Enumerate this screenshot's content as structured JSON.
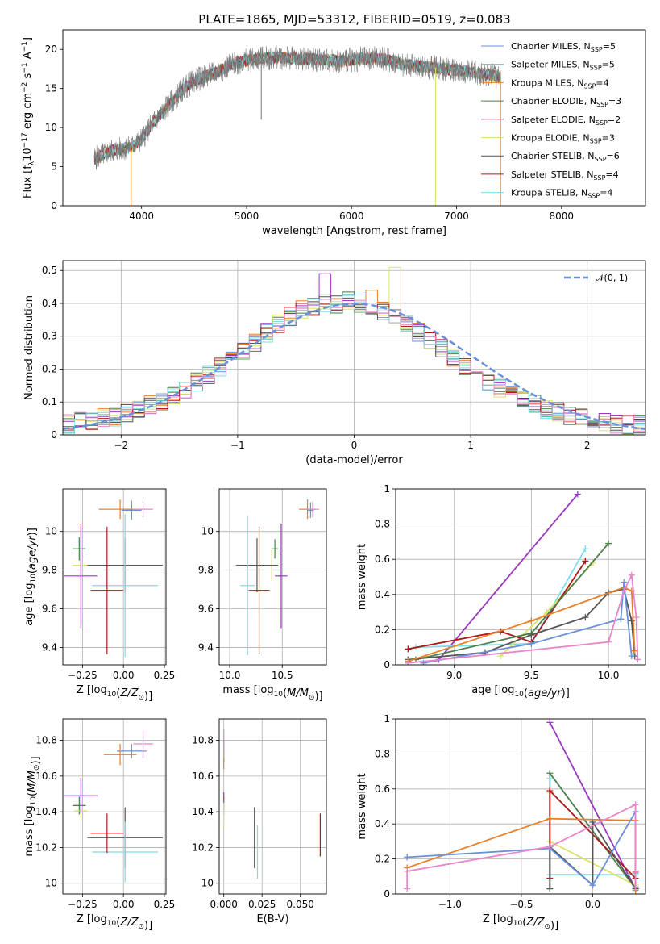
{
  "figure": {
    "title": "PLATE=1865, MJD=53312, FIBERID=0519, z=0.083"
  },
  "chart_data": [
    {
      "id": "spectrum",
      "type": "line",
      "xlabel": "wavelength [Angstrom, rest frame]",
      "ylabel_parts": {
        "pre": "Flux [f",
        "sub": "λ",
        "mid": "10",
        "sup": "−17",
        "post": " erg cm",
        "sup2": "−2",
        "post2": " s",
        "sup3": "−1",
        "post3": " A",
        "sup4": "−1",
        "end": "]"
      },
      "xlim": [
        3250,
        8800
      ],
      "ylim": [
        0,
        22.5
      ],
      "xticks": [
        4000,
        5000,
        6000,
        7000,
        8000
      ],
      "yticks": [
        0,
        5,
        10,
        15,
        20
      ],
      "grid": false,
      "legend_position": "right",
      "series": [
        {
          "name": "Chabrier MILES, N",
          "sub": "SSP",
          "suffix": "=5",
          "color": "#6a8fdb"
        },
        {
          "name": "Salpeter MILES, N",
          "sub": "SSP",
          "suffix": "=5",
          "color": "#4dbdb0"
        },
        {
          "name": "Kroupa MILES, N",
          "sub": "SSP",
          "suffix": "=4",
          "color": "#e8802a"
        },
        {
          "name": "Chabrier ELODIE, N",
          "sub": "SSP",
          "suffix": "=3",
          "color": "#4b7f4b"
        },
        {
          "name": "Salpeter ELODIE, N",
          "sub": "SSP",
          "suffix": "=2",
          "color": "#9a38c0"
        },
        {
          "name": "Kroupa ELODIE, N",
          "sub": "SSP",
          "suffix": "=3",
          "color": "#d9e36a"
        },
        {
          "name": "Chabrier STELIB, N",
          "sub": "SSP",
          "suffix": "=6",
          "color": "#555555"
        },
        {
          "name": "Salpeter STELIB, N",
          "sub": "SSP",
          "suffix": "=4",
          "color": "#b01818"
        },
        {
          "name": "Kroupa STELIB, N",
          "sub": "SSP",
          "suffix": "=4",
          "color": "#7fdde6"
        }
      ],
      "continuum": {
        "x": [
          3550,
          3700,
          3900,
          4000,
          4100,
          4200,
          4300,
          4400,
          4500,
          4700,
          4900,
          5100,
          5300,
          5500,
          5700,
          5900,
          6100,
          6300,
          6500,
          6700,
          6900,
          7100,
          7300,
          7400
        ],
        "y": [
          6.0,
          7.0,
          7.5,
          8.5,
          10.5,
          12.0,
          13.5,
          15.0,
          16.0,
          17.0,
          18.3,
          18.8,
          19.0,
          18.8,
          18.7,
          18.5,
          18.8,
          18.8,
          18.0,
          17.8,
          17.5,
          17.2,
          16.8,
          16.5
        ]
      },
      "data_x_range": [
        3550,
        7420
      ]
    },
    {
      "id": "residuals",
      "type": "step",
      "xlabel": "(data-model)/error",
      "ylabel": "Normed distribution",
      "xlim": [
        -2.5,
        2.5
      ],
      "ylim": [
        0,
        0.53
      ],
      "xticks": [
        -2,
        -1,
        0,
        1,
        2
      ],
      "xtick_labels": [
        "−2",
        "−1",
        "0",
        "1",
        "2"
      ],
      "yticks": [
        0.0,
        0.1,
        0.2,
        0.3,
        0.4,
        0.5
      ],
      "grid": true,
      "legend_position": "top-right",
      "gaussian": {
        "label": "𝒩(0, 1)",
        "color": "#6a8fdb"
      },
      "bin_edges_start": -2.6,
      "bin_width": 0.1,
      "base_hist": [
        0.03,
        0.035,
        0.04,
        0.045,
        0.05,
        0.055,
        0.065,
        0.075,
        0.09,
        0.105,
        0.12,
        0.14,
        0.16,
        0.18,
        0.205,
        0.23,
        0.255,
        0.28,
        0.31,
        0.34,
        0.36,
        0.38,
        0.39,
        0.4,
        0.4,
        0.41,
        0.4,
        0.39,
        0.38,
        0.36,
        0.34,
        0.31,
        0.285,
        0.26,
        0.235,
        0.21,
        0.185,
        0.165,
        0.145,
        0.125,
        0.11,
        0.095,
        0.08,
        0.07,
        0.06,
        0.05,
        0.045,
        0.04,
        0.035,
        0.03,
        0.03,
        0.03,
        0.03
      ],
      "peaks": {
        "orange_max": 0.44,
        "yellow_max": 0.51,
        "purple_max": 0.49
      }
    },
    {
      "id": "age-vs-Z",
      "type": "errorbar",
      "xlabel_parts": {
        "pre": "Z [log",
        "sub": "10",
        "mid": "(",
        "it": "Z/Z",
        "sun": "⊙",
        "end": ")]"
      },
      "ylabel_parts": {
        "pre": "age  [log",
        "sub": "10",
        "mid": "(",
        "it": "age/yr",
        "end": ")]"
      },
      "xlim": [
        -0.37,
        0.26
      ],
      "ylim": [
        9.31,
        10.22
      ],
      "xticks": [
        -0.25,
        0.0,
        0.25
      ],
      "xtick_labels": [
        "−0.25",
        "0.00",
        "0.25"
      ],
      "yticks": [
        9.4,
        9.6,
        9.8,
        10.0
      ],
      "grid": true,
      "points": [
        {
          "x": 0.05,
          "xerr": 0.06,
          "y": 10.11,
          "yerr": 0.05,
          "color": "#6a8fdb"
        },
        {
          "x": -0.02,
          "xerr": 0.13,
          "y": 10.115,
          "yerr": 0.05,
          "color": "#e8802a"
        },
        {
          "x": 0.12,
          "xerr": 0.06,
          "y": 10.115,
          "yerr": 0.04,
          "color": "#e886c8"
        },
        {
          "x": -0.27,
          "xerr": 0.04,
          "y": 9.91,
          "yerr": 0.06,
          "color": "#4b7f4b"
        },
        {
          "x": -0.26,
          "xerr": 0.05,
          "y": 9.825,
          "yerr": 0.08,
          "color": "#d9e36a"
        },
        {
          "x": -0.26,
          "xerr": 0.1,
          "y": 9.77,
          "yerr": 0.27,
          "color": "#9a38c0"
        },
        {
          "x": 0.01,
          "xerr": 0.23,
          "y": 9.825,
          "yerr": 0.14,
          "color": "#555555"
        },
        {
          "x": 0.01,
          "xerr": 0.2,
          "y": 9.72,
          "yerr": 0.37,
          "color": "#7fdde6"
        },
        {
          "x": -0.1,
          "xerr": 0.1,
          "y": 9.695,
          "yerr": 0.33,
          "color": "#b01818"
        }
      ]
    },
    {
      "id": "age-vs-mass",
      "type": "errorbar",
      "xlabel_parts": {
        "pre": "mass [log",
        "sub": "10",
        "mid": "(",
        "it": "M/M",
        "sun": "⊙",
        "end": ")]"
      },
      "xlim": [
        9.9,
        10.92
      ],
      "ylim": [
        9.31,
        10.22
      ],
      "xticks": [
        10.0,
        10.5
      ],
      "xtick_labels": [
        "10.0",
        "10.5"
      ],
      "yticks": [
        9.4,
        9.6,
        9.8,
        10.0
      ],
      "grid": true,
      "points": [
        {
          "x": 10.77,
          "xerr": 0.03,
          "y": 10.11,
          "yerr": 0.04,
          "color": "#6a8fdb"
        },
        {
          "x": 10.74,
          "xerr": 0.08,
          "y": 10.115,
          "yerr": 0.05,
          "color": "#e8802a"
        },
        {
          "x": 10.79,
          "xerr": 0.06,
          "y": 10.115,
          "yerr": 0.04,
          "color": "#e886c8"
        },
        {
          "x": 10.43,
          "xerr": 0.03,
          "y": 9.91,
          "yerr": 0.05,
          "color": "#4b7f4b"
        },
        {
          "x": 10.4,
          "xerr": 0.03,
          "y": 9.825,
          "yerr": 0.08,
          "color": "#d9e36a"
        },
        {
          "x": 10.49,
          "xerr": 0.06,
          "y": 9.77,
          "yerr": 0.27,
          "color": "#9a38c0"
        },
        {
          "x": 10.26,
          "xerr": 0.2,
          "y": 9.825,
          "yerr": 0.14,
          "color": "#555555"
        },
        {
          "x": 10.17,
          "xerr": 0.07,
          "y": 9.72,
          "yerr": 0.36,
          "color": "#7fdde6"
        },
        {
          "x": 10.28,
          "xerr": 0.1,
          "y": 9.695,
          "yerr": 0.33,
          "color": "#b01818"
        }
      ]
    },
    {
      "id": "massweight-vs-age",
      "type": "line",
      "xlabel_parts": {
        "pre": "age  [log",
        "sub": "10",
        "mid": "(",
        "it": "age/yr",
        "end": ")]"
      },
      "ylabel": "mass weight",
      "xlim": [
        8.62,
        10.24
      ],
      "ylim": [
        0,
        1
      ],
      "xticks": [
        9.0,
        9.5,
        10.0
      ],
      "xtick_labels": [
        "9.0",
        "9.5",
        "10.0"
      ],
      "yticks": [
        0.0,
        0.2,
        0.4,
        0.6,
        0.8,
        1.0
      ],
      "grid": true,
      "series": [
        {
          "color": "#9a38c0",
          "x": [
            8.9,
            9.8
          ],
          "y": [
            0.03,
            0.97
          ]
        },
        {
          "color": "#7fdde6",
          "x": [
            8.75,
            9.5,
            9.85
          ],
          "y": [
            0.1,
            0.12,
            0.66
          ]
        },
        {
          "color": "#d9e36a",
          "x": [
            9.3,
            9.6,
            9.9
          ],
          "y": [
            0.05,
            0.3,
            0.58
          ]
        },
        {
          "color": "#b01818",
          "x": [
            8.7,
            9.3,
            9.5,
            9.85
          ],
          "y": [
            0.09,
            0.19,
            0.13,
            0.59
          ]
        },
        {
          "color": "#4b7f4b",
          "x": [
            8.75,
            9.5,
            10.0
          ],
          "y": [
            0.03,
            0.18,
            0.69
          ]
        },
        {
          "color": "#555555",
          "x": [
            8.7,
            9.2,
            9.5,
            9.85,
            10.0,
            10.1,
            10.15,
            10.17
          ],
          "y": [
            0.03,
            0.07,
            0.17,
            0.27,
            0.41,
            0.43,
            0.25,
            0.05
          ]
        },
        {
          "color": "#e8802a",
          "x": [
            8.7,
            9.5,
            10.1,
            10.15,
            10.17
          ],
          "y": [
            0.02,
            0.25,
            0.44,
            0.42,
            0.08
          ]
        },
        {
          "color": "#6a8fdb",
          "x": [
            8.8,
            9.5,
            10.08,
            10.1,
            10.15
          ],
          "y": [
            0.01,
            0.12,
            0.26,
            0.47,
            0.05
          ]
        },
        {
          "color": "#e886c8",
          "x": [
            8.7,
            10.0,
            10.1,
            10.15,
            10.18,
            10.19
          ],
          "y": [
            0.01,
            0.13,
            0.42,
            0.51,
            0.27,
            0.03
          ]
        }
      ]
    },
    {
      "id": "mass-vs-Z",
      "type": "errorbar",
      "xlabel_parts": {
        "pre": "Z [log",
        "sub": "10",
        "mid": "(",
        "it": "Z/Z",
        "sun": "⊙",
        "end": ")]"
      },
      "ylabel_parts": {
        "pre": "mass [log",
        "sub": "10",
        "mid": "(",
        "it": "M/M",
        "sun": "⊙",
        "end": ")]"
      },
      "xlim": [
        -0.37,
        0.26
      ],
      "ylim": [
        9.94,
        10.92
      ],
      "xticks": [
        -0.25,
        0.0,
        0.25
      ],
      "xtick_labels": [
        "−0.25",
        "0.00",
        "0.25"
      ],
      "yticks": [
        10.0,
        10.2,
        10.4,
        10.6,
        10.8
      ],
      "grid": true,
      "points": [
        {
          "x": 0.05,
          "xerr": 0.09,
          "y": 10.74,
          "yerr": 0.04,
          "color": "#6a8fdb"
        },
        {
          "x": -0.02,
          "xerr": 0.1,
          "y": 10.72,
          "yerr": 0.06,
          "color": "#e8802a"
        },
        {
          "x": 0.12,
          "xerr": 0.06,
          "y": 10.78,
          "yerr": 0.08,
          "color": "#e886c8"
        },
        {
          "x": -0.27,
          "xerr": 0.04,
          "y": 10.435,
          "yerr": 0.05,
          "color": "#4b7f4b"
        },
        {
          "x": -0.26,
          "xerr": 0.04,
          "y": 10.405,
          "yerr": 0.04,
          "color": "#d9e36a"
        },
        {
          "x": -0.26,
          "xerr": 0.1,
          "y": 10.49,
          "yerr": 0.1,
          "color": "#9a38c0"
        },
        {
          "x": 0.01,
          "xerr": 0.23,
          "y": 10.255,
          "yerr": 0.17,
          "color": "#555555"
        },
        {
          "x": 0.01,
          "xerr": 0.2,
          "y": 10.175,
          "yerr": 0.17,
          "color": "#7fdde6"
        },
        {
          "x": -0.1,
          "xerr": 0.1,
          "y": 10.28,
          "yerr": 0.11,
          "color": "#b01818"
        }
      ]
    },
    {
      "id": "mass-vs-ebv",
      "type": "errorbar",
      "xlabel": "E(B-V)",
      "xlim": [
        -0.003,
        0.067
      ],
      "ylim": [
        9.94,
        10.92
      ],
      "xticks": [
        0.0,
        0.025,
        0.05
      ],
      "xtick_labels": [
        "0.000",
        "0.025",
        "0.050"
      ],
      "yticks": [
        10.0,
        10.2,
        10.4,
        10.6,
        10.8
      ],
      "grid": true,
      "points": [
        {
          "x": 0.0,
          "xerr": 0.0,
          "y": 10.74,
          "yerr": 0.06,
          "color": "#6a8fdb"
        },
        {
          "x": 0.0,
          "xerr": 0.0,
          "y": 10.72,
          "yerr": 0.08,
          "color": "#e8802a"
        },
        {
          "x": 0.0,
          "xerr": 0.0,
          "y": 10.78,
          "yerr": 0.08,
          "color": "#e886c8"
        },
        {
          "x": 0.0,
          "xerr": 0.0,
          "y": 10.435,
          "yerr": 0.05,
          "color": "#4b7f4b"
        },
        {
          "x": 0.0,
          "xerr": 0.0,
          "y": 10.38,
          "yerr": 0.07,
          "color": "#d9e36a"
        },
        {
          "x": 0.0,
          "xerr": 0.0,
          "y": 10.49,
          "yerr": 0.02,
          "color": "#9a38c0"
        },
        {
          "x": 0.02,
          "xerr": 0.0,
          "y": 10.255,
          "yerr": 0.17,
          "color": "#555555"
        },
        {
          "x": 0.022,
          "xerr": 0.0,
          "y": 10.175,
          "yerr": 0.15,
          "color": "#7fdde6"
        },
        {
          "x": 0.063,
          "xerr": 0.0,
          "y": 10.27,
          "yerr": 0.12,
          "color": "#b01818"
        }
      ]
    },
    {
      "id": "massweight-vs-Z",
      "type": "line",
      "xlabel_parts": {
        "pre": "Z [log",
        "sub": "10",
        "mid": "(",
        "it": "Z/Z",
        "sun": "⊙",
        "end": ")]"
      },
      "ylabel": "mass weight",
      "xlim": [
        -1.38,
        0.37
      ],
      "ylim": [
        0,
        1
      ],
      "xticks": [
        -1.0,
        -0.5,
        0.0
      ],
      "xtick_labels": [
        "−1.0",
        "−0.5",
        "0.0"
      ],
      "yticks": [
        0.0,
        0.2,
        0.4,
        0.6,
        0.8,
        1.0
      ],
      "grid": true,
      "series": [
        {
          "color": "#9a38c0",
          "x": [
            -0.3,
            0.3
          ],
          "y": [
            0.98,
            0.03
          ]
        },
        {
          "color": "#4b7f4b",
          "x": [
            -0.3,
            -0.3,
            0.3,
            0.3
          ],
          "y": [
            0.03,
            0.69,
            0.03,
            0.03
          ]
        },
        {
          "color": "#7fdde6",
          "x": [
            -0.3,
            -0.3,
            0.3
          ],
          "y": [
            0.66,
            0.11,
            0.11
          ]
        },
        {
          "color": "#d9e36a",
          "x": [
            -0.3,
            -0.3,
            0.3
          ],
          "y": [
            0.58,
            0.3,
            0.05
          ]
        },
        {
          "color": "#b01818",
          "x": [
            -0.3,
            -0.3,
            0.3,
            0.3
          ],
          "y": [
            0.09,
            0.59,
            0.09,
            0.13
          ]
        },
        {
          "color": "#555555",
          "x": [
            -0.3,
            -0.3,
            0.0,
            0.0,
            0.3
          ],
          "y": [
            0.03,
            0.27,
            0.05,
            0.41,
            0.03
          ]
        },
        {
          "color": "#e8802a",
          "x": [
            -1.3,
            -0.3,
            0.3,
            0.3
          ],
          "y": [
            0.15,
            0.43,
            0.42,
            0.02
          ]
        },
        {
          "color": "#6a8fdb",
          "x": [
            -1.3,
            -0.3,
            0.0,
            0.3,
            0.3
          ],
          "y": [
            0.21,
            0.26,
            0.05,
            0.47,
            0.12
          ]
        },
        {
          "color": "#e886c8",
          "x": [
            -1.3,
            -1.3,
            -0.3,
            0.3,
            0.3
          ],
          "y": [
            0.03,
            0.13,
            0.27,
            0.51,
            0.04
          ]
        }
      ]
    }
  ]
}
